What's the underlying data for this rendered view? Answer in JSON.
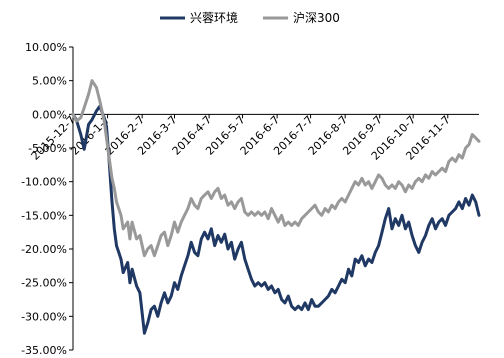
{
  "chart_data": {
    "type": "line",
    "title": "",
    "xlabel": "",
    "ylabel": "",
    "ylim": [
      -35,
      10
    ],
    "y_ticks": [
      "10.00%",
      "5.00%",
      "0.00%",
      "-5.00%",
      "-10.00%",
      "-15.00%",
      "-20.00%",
      "-25.00%",
      "-30.00%",
      "-35.00%"
    ],
    "x_ticks": [
      "2015-12-7",
      "2016-1-7",
      "2016-2-7",
      "2016-3-7",
      "2016-4-7",
      "2016-5-7",
      "2016-6-7",
      "2016-7-7",
      "2016-8-7",
      "2016-9-7",
      "2016-10-7",
      "2016-11-7"
    ],
    "legend_position": "top",
    "grid": false,
    "series": [
      {
        "name": "兴蓉环境",
        "color": "#1f3864",
        "points": [
          [
            "2015-12-07",
            0.0
          ],
          [
            "2015-12-10",
            -0.8
          ],
          [
            "2015-12-14",
            -3.0
          ],
          [
            "2015-12-17",
            -5.2
          ],
          [
            "2015-12-21",
            -1.5
          ],
          [
            "2015-12-24",
            -0.8
          ],
          [
            "2015-12-28",
            0.5
          ],
          [
            "2015-12-31",
            1.2
          ],
          [
            "2016-01-04",
            -0.5
          ],
          [
            "2016-01-06",
            -1.8
          ],
          [
            "2016-01-08",
            -6.0
          ],
          [
            "2016-01-11",
            -13.0
          ],
          [
            "2016-01-13",
            -17.0
          ],
          [
            "2016-01-15",
            -19.5
          ],
          [
            "2016-01-19",
            -21.5
          ],
          [
            "2016-01-21",
            -23.5
          ],
          [
            "2016-01-25",
            -22.0
          ],
          [
            "2016-01-27",
            -25.0
          ],
          [
            "2016-01-29",
            -23.0
          ],
          [
            "2016-02-02",
            -25.5
          ],
          [
            "2016-02-05",
            -26.5
          ],
          [
            "2016-02-09",
            -32.5
          ],
          [
            "2016-02-12",
            -31.0
          ],
          [
            "2016-02-15",
            -29.0
          ],
          [
            "2016-02-18",
            -28.5
          ],
          [
            "2016-02-21",
            -30.0
          ],
          [
            "2016-02-24",
            -28.0
          ],
          [
            "2016-02-27",
            -26.5
          ],
          [
            "2016-03-01",
            -28.0
          ],
          [
            "2016-03-04",
            -27.0
          ],
          [
            "2016-03-07",
            -25.0
          ],
          [
            "2016-03-10",
            -26.0
          ],
          [
            "2016-03-13",
            -24.0
          ],
          [
            "2016-03-16",
            -22.5
          ],
          [
            "2016-03-19",
            -21.0
          ],
          [
            "2016-03-22",
            -19.0
          ],
          [
            "2016-03-25",
            -20.5
          ],
          [
            "2016-03-28",
            -21.0
          ],
          [
            "2016-03-31",
            -18.5
          ],
          [
            "2016-04-03",
            -17.5
          ],
          [
            "2016-04-06",
            -18.5
          ],
          [
            "2016-04-09",
            -17.0
          ],
          [
            "2016-04-12",
            -19.5
          ],
          [
            "2016-04-15",
            -18.0
          ],
          [
            "2016-04-18",
            -19.0
          ],
          [
            "2016-04-21",
            -17.8
          ],
          [
            "2016-04-24",
            -20.0
          ],
          [
            "2016-04-27",
            -19.0
          ],
          [
            "2016-04-30",
            -21.5
          ],
          [
            "2016-05-03",
            -20.0
          ],
          [
            "2016-05-06",
            -19.0
          ],
          [
            "2016-05-09",
            -21.5
          ],
          [
            "2016-05-12",
            -23.0
          ],
          [
            "2016-05-15",
            -24.5
          ],
          [
            "2016-05-18",
            -25.5
          ],
          [
            "2016-05-21",
            -25.0
          ],
          [
            "2016-05-24",
            -25.5
          ],
          [
            "2016-05-27",
            -25.0
          ],
          [
            "2016-05-30",
            -26.0
          ],
          [
            "2016-06-02",
            -25.5
          ],
          [
            "2016-06-05",
            -26.5
          ],
          [
            "2016-06-08",
            -26.0
          ],
          [
            "2016-06-11",
            -27.5
          ],
          [
            "2016-06-14",
            -28.0
          ],
          [
            "2016-06-17",
            -27.0
          ],
          [
            "2016-06-20",
            -28.5
          ],
          [
            "2016-06-23",
            -29.0
          ],
          [
            "2016-06-26",
            -28.5
          ],
          [
            "2016-06-29",
            -29.0
          ],
          [
            "2016-07-02",
            -28.0
          ],
          [
            "2016-07-05",
            -29.0
          ],
          [
            "2016-07-08",
            -27.5
          ],
          [
            "2016-07-11",
            -28.5
          ],
          [
            "2016-07-14",
            -28.5
          ],
          [
            "2016-07-17",
            -28.0
          ],
          [
            "2016-07-20",
            -27.5
          ],
          [
            "2016-07-23",
            -27.0
          ],
          [
            "2016-07-26",
            -26.0
          ],
          [
            "2016-07-29",
            -26.5
          ],
          [
            "2016-08-01",
            -25.5
          ],
          [
            "2016-08-04",
            -24.5
          ],
          [
            "2016-08-07",
            -25.0
          ],
          [
            "2016-08-10",
            -23.0
          ],
          [
            "2016-08-13",
            -24.0
          ],
          [
            "2016-08-16",
            -21.5
          ],
          [
            "2016-08-19",
            -22.0
          ],
          [
            "2016-08-22",
            -21.0
          ],
          [
            "2016-08-25",
            -22.5
          ],
          [
            "2016-08-28",
            -21.5
          ],
          [
            "2016-08-31",
            -22.0
          ],
          [
            "2016-09-03",
            -20.5
          ],
          [
            "2016-09-06",
            -19.5
          ],
          [
            "2016-09-09",
            -17.5
          ],
          [
            "2016-09-12",
            -15.5
          ],
          [
            "2016-09-15",
            -14.0
          ],
          [
            "2016-09-18",
            -17.0
          ],
          [
            "2016-09-21",
            -15.5
          ],
          [
            "2016-09-24",
            -16.5
          ],
          [
            "2016-09-27",
            -15.0
          ],
          [
            "2016-09-30",
            -17.0
          ],
          [
            "2016-10-03",
            -16.0
          ],
          [
            "2016-10-06",
            -18.0
          ],
          [
            "2016-10-09",
            -19.5
          ],
          [
            "2016-10-12",
            -20.5
          ],
          [
            "2016-10-15",
            -19.0
          ],
          [
            "2016-10-18",
            -18.0
          ],
          [
            "2016-10-21",
            -16.5
          ],
          [
            "2016-10-24",
            -15.5
          ],
          [
            "2016-10-27",
            -17.0
          ],
          [
            "2016-10-30",
            -16.0
          ],
          [
            "2016-11-02",
            -15.5
          ],
          [
            "2016-11-05",
            -16.5
          ],
          [
            "2016-11-08",
            -15.0
          ],
          [
            "2016-11-11",
            -14.5
          ],
          [
            "2016-11-14",
            -14.0
          ],
          [
            "2016-11-17",
            -13.0
          ],
          [
            "2016-11-20",
            -14.0
          ],
          [
            "2016-11-23",
            -12.5
          ],
          [
            "2016-11-26",
            -13.5
          ],
          [
            "2016-11-29",
            -12.0
          ],
          [
            "2016-12-02",
            -13.0
          ],
          [
            "2016-12-05",
            -15.0
          ]
        ]
      },
      {
        "name": "沪深300",
        "color": "#999999",
        "points": [
          [
            "2015-12-07",
            0.0
          ],
          [
            "2015-12-10",
            -1.0
          ],
          [
            "2015-12-14",
            -0.5
          ],
          [
            "2015-12-17",
            1.0
          ],
          [
            "2015-12-21",
            3.0
          ],
          [
            "2015-12-24",
            5.0
          ],
          [
            "2015-12-28",
            4.0
          ],
          [
            "2015-12-31",
            2.0
          ],
          [
            "2016-01-04",
            -1.0
          ],
          [
            "2016-01-06",
            -3.5
          ],
          [
            "2016-01-08",
            -6.0
          ],
          [
            "2016-01-11",
            -9.5
          ],
          [
            "2016-01-13",
            -11.0
          ],
          [
            "2016-01-15",
            -13.0
          ],
          [
            "2016-01-19",
            -15.0
          ],
          [
            "2016-01-21",
            -17.0
          ],
          [
            "2016-01-25",
            -16.0
          ],
          [
            "2016-01-27",
            -18.5
          ],
          [
            "2016-01-29",
            -16.0
          ],
          [
            "2016-02-02",
            -18.5
          ],
          [
            "2016-02-05",
            -18.0
          ],
          [
            "2016-02-09",
            -21.0
          ],
          [
            "2016-02-12",
            -20.0
          ],
          [
            "2016-02-15",
            -19.5
          ],
          [
            "2016-02-18",
            -21.0
          ],
          [
            "2016-02-21",
            -19.5
          ],
          [
            "2016-02-24",
            -18.0
          ],
          [
            "2016-02-27",
            -17.5
          ],
          [
            "2016-03-01",
            -19.5
          ],
          [
            "2016-03-04",
            -18.0
          ],
          [
            "2016-03-07",
            -16.0
          ],
          [
            "2016-03-10",
            -17.5
          ],
          [
            "2016-03-13",
            -16.0
          ],
          [
            "2016-03-16",
            -15.0
          ],
          [
            "2016-03-19",
            -14.0
          ],
          [
            "2016-03-22",
            -12.5
          ],
          [
            "2016-03-25",
            -13.5
          ],
          [
            "2016-03-28",
            -14.0
          ],
          [
            "2016-03-31",
            -12.5
          ],
          [
            "2016-04-03",
            -12.0
          ],
          [
            "2016-04-06",
            -11.5
          ],
          [
            "2016-04-09",
            -12.5
          ],
          [
            "2016-04-12",
            -11.5
          ],
          [
            "2016-04-15",
            -11.0
          ],
          [
            "2016-04-18",
            -12.5
          ],
          [
            "2016-04-21",
            -12.0
          ],
          [
            "2016-04-24",
            -13.5
          ],
          [
            "2016-04-27",
            -13.0
          ],
          [
            "2016-04-30",
            -14.0
          ],
          [
            "2016-05-03",
            -13.0
          ],
          [
            "2016-05-06",
            -12.5
          ],
          [
            "2016-05-09",
            -14.5
          ],
          [
            "2016-05-12",
            -15.0
          ],
          [
            "2016-05-15",
            -14.5
          ],
          [
            "2016-05-18",
            -15.0
          ],
          [
            "2016-05-21",
            -14.5
          ],
          [
            "2016-05-24",
            -15.0
          ],
          [
            "2016-05-27",
            -14.5
          ],
          [
            "2016-05-30",
            -15.5
          ],
          [
            "2016-06-02",
            -14.0
          ],
          [
            "2016-06-05",
            -15.0
          ],
          [
            "2016-06-08",
            -16.0
          ],
          [
            "2016-06-11",
            -15.0
          ],
          [
            "2016-06-14",
            -16.5
          ],
          [
            "2016-06-17",
            -16.0
          ],
          [
            "2016-06-20",
            -16.5
          ],
          [
            "2016-06-23",
            -16.0
          ],
          [
            "2016-06-26",
            -16.5
          ],
          [
            "2016-06-29",
            -15.5
          ],
          [
            "2016-07-02",
            -15.0
          ],
          [
            "2016-07-05",
            -14.5
          ],
          [
            "2016-07-08",
            -14.0
          ],
          [
            "2016-07-11",
            -13.5
          ],
          [
            "2016-07-14",
            -14.5
          ],
          [
            "2016-07-17",
            -15.0
          ],
          [
            "2016-07-20",
            -14.0
          ],
          [
            "2016-07-23",
            -14.5
          ],
          [
            "2016-07-26",
            -13.5
          ],
          [
            "2016-07-29",
            -14.0
          ],
          [
            "2016-08-01",
            -13.0
          ],
          [
            "2016-08-04",
            -12.5
          ],
          [
            "2016-08-07",
            -13.0
          ],
          [
            "2016-08-10",
            -12.0
          ],
          [
            "2016-08-13",
            -11.0
          ],
          [
            "2016-08-16",
            -10.0
          ],
          [
            "2016-08-19",
            -10.5
          ],
          [
            "2016-08-22",
            -9.5
          ],
          [
            "2016-08-25",
            -10.5
          ],
          [
            "2016-08-28",
            -10.0
          ],
          [
            "2016-08-31",
            -11.0
          ],
          [
            "2016-09-03",
            -10.0
          ],
          [
            "2016-09-06",
            -9.0
          ],
          [
            "2016-09-09",
            -9.5
          ],
          [
            "2016-09-12",
            -10.5
          ],
          [
            "2016-09-15",
            -11.0
          ],
          [
            "2016-09-18",
            -10.5
          ],
          [
            "2016-09-21",
            -11.0
          ],
          [
            "2016-09-24",
            -10.0
          ],
          [
            "2016-09-27",
            -10.5
          ],
          [
            "2016-09-30",
            -11.5
          ],
          [
            "2016-10-03",
            -10.5
          ],
          [
            "2016-10-06",
            -11.0
          ],
          [
            "2016-10-09",
            -10.0
          ],
          [
            "2016-10-12",
            -9.5
          ],
          [
            "2016-10-15",
            -10.0
          ],
          [
            "2016-10-18",
            -9.0
          ],
          [
            "2016-10-21",
            -9.5
          ],
          [
            "2016-10-24",
            -8.5
          ],
          [
            "2016-10-27",
            -9.0
          ],
          [
            "2016-10-30",
            -8.5
          ],
          [
            "2016-11-02",
            -8.0
          ],
          [
            "2016-11-05",
            -8.5
          ],
          [
            "2016-11-08",
            -7.0
          ],
          [
            "2016-11-11",
            -6.5
          ],
          [
            "2016-11-14",
            -7.0
          ],
          [
            "2016-11-17",
            -6.0
          ],
          [
            "2016-11-20",
            -6.5
          ],
          [
            "2016-11-23",
            -5.0
          ],
          [
            "2016-11-26",
            -4.5
          ],
          [
            "2016-11-29",
            -3.0
          ],
          [
            "2016-12-02",
            -3.5
          ],
          [
            "2016-12-05",
            -4.0
          ]
        ]
      }
    ]
  }
}
